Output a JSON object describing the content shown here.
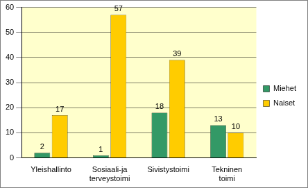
{
  "chart_data": {
    "type": "bar",
    "categories": [
      "Yleishallinto",
      "Sosiaali-ja terveystoimi",
      "Sivistystoimi",
      "Tekninen toimi"
    ],
    "series": [
      {
        "name": "Miehet",
        "color": "#339966",
        "values": [
          2,
          1,
          18,
          13
        ]
      },
      {
        "name": "Naiset",
        "color": "#ffcc00",
        "values": [
          17,
          57,
          39,
          10
        ]
      }
    ],
    "ylim": [
      0,
      60
    ],
    "yticks": [
      0,
      10,
      20,
      30,
      40,
      50,
      60
    ],
    "grid": true,
    "legend": "right",
    "data_labels": true
  }
}
